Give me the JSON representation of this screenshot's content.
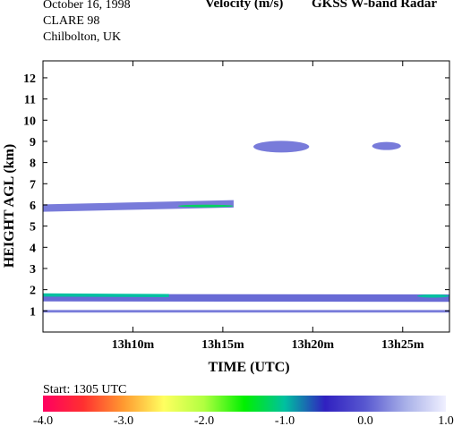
{
  "header": {
    "date": "October  16, 1998",
    "campaign": "CLARE 98",
    "location": "Chilbolton, UK",
    "quantity": "Velocity (m/s)",
    "instrument": "GKSS  W-band Radar"
  },
  "colorbar": {
    "start_label": "Start: 1305 UTC",
    "ticks": [
      "-4.0",
      "-3.0",
      "-2.0",
      "-1.0",
      "0.0",
      "1.0"
    ],
    "stops": [
      "#ff0060",
      "#ff3030",
      "#ff9a30",
      "#ffff60",
      "#b0ff40",
      "#00f000",
      "#00c0a0",
      "#3020c0",
      "#5858d0",
      "#a8b0e8",
      "#f0f0ff"
    ]
  },
  "chart_data": {
    "type": "heatmap",
    "title": "Velocity (m/s)",
    "xlabel": "TIME (UTC)",
    "ylabel": "HEIGHT AGL (km)",
    "x_range_min": [
      5.0,
      27.6
    ],
    "ylim": [
      0,
      12.8
    ],
    "x_ticks": [
      {
        "min": 10,
        "label": "13h10m"
      },
      {
        "min": 15,
        "label": "13h15m"
      },
      {
        "min": 20,
        "label": "13h20m"
      },
      {
        "min": 25,
        "label": "13h25m"
      }
    ],
    "y_ticks": [
      1,
      2,
      3,
      4,
      5,
      6,
      7,
      8,
      9,
      10,
      11,
      12
    ],
    "layers": [
      {
        "t0": 5.0,
        "t1": 15.6,
        "h_start": 5.85,
        "h_end": 6.05,
        "thickness": 0.35,
        "velocity": 0.2
      },
      {
        "t0": 12.5,
        "t1": 15.6,
        "h_start": 5.95,
        "h_end": 5.95,
        "thickness": 0.12,
        "velocity": -1.2
      },
      {
        "t0": 16.7,
        "t1": 19.8,
        "h_start": 8.75,
        "h_end": 8.75,
        "thickness": 0.55,
        "velocity": 0.2
      },
      {
        "t0": 23.3,
        "t1": 24.9,
        "h_start": 8.78,
        "h_end": 8.78,
        "thickness": 0.38,
        "velocity": 0.2
      },
      {
        "t0": 5.0,
        "t1": 27.6,
        "h_start": 1.62,
        "h_end": 1.6,
        "thickness": 0.35,
        "velocity": 0.1
      },
      {
        "t0": 5.0,
        "t1": 12.0,
        "h_start": 1.75,
        "h_end": 1.72,
        "thickness": 0.15,
        "velocity": -1.0
      },
      {
        "t0": 25.8,
        "t1": 27.6,
        "h_start": 1.7,
        "h_end": 1.7,
        "thickness": 0.15,
        "velocity": -1.0
      },
      {
        "t0": 5.0,
        "t1": 27.6,
        "h_start": 0.98,
        "h_end": 0.98,
        "thickness": 0.12,
        "velocity": 0.2
      }
    ]
  }
}
